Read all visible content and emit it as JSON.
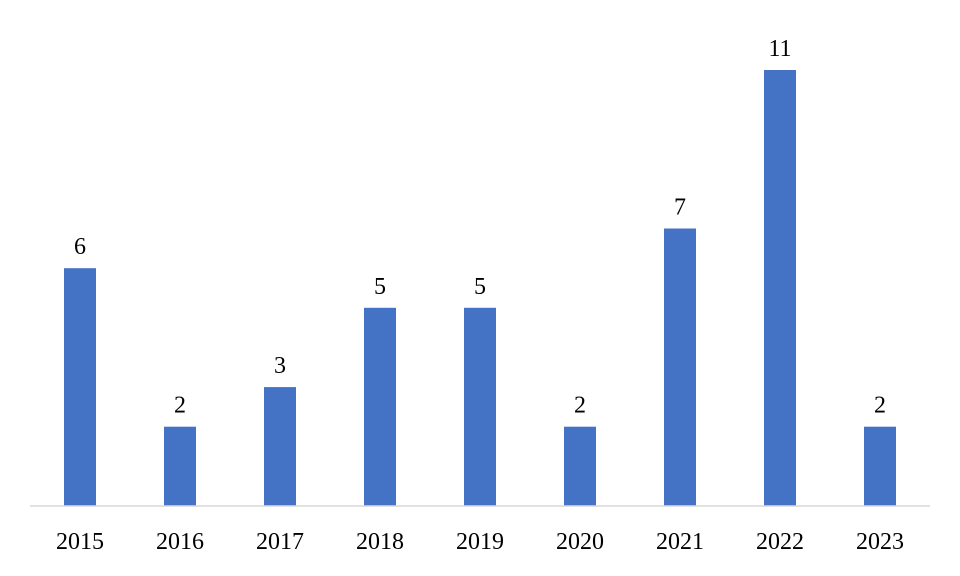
{
  "chart_data": {
    "type": "bar",
    "title": "",
    "xlabel": "",
    "ylabel": "",
    "categories": [
      "2015",
      "2016",
      "2017",
      "2018",
      "2019",
      "2020",
      "2021",
      "2022",
      "2023"
    ],
    "values": [
      6,
      2,
      3,
      5,
      5,
      2,
      7,
      11,
      2
    ],
    "data_labels": [
      "6",
      "2",
      "3",
      "5",
      "5",
      "2",
      "7",
      "11",
      "2"
    ],
    "ylim": [
      0,
      11
    ],
    "grid": false,
    "legend": "none",
    "colors": {
      "bar": "#4472c4",
      "axis": "#d9d9d9",
      "text": "#000000",
      "background": "#ffffff"
    }
  }
}
